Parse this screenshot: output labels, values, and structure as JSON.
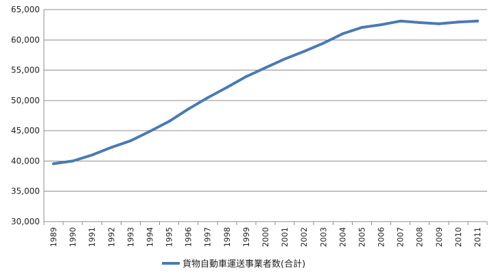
{
  "chart_data": {
    "type": "line",
    "title": "",
    "xlabel": "",
    "ylabel": "",
    "categories": [
      "1989",
      "1990",
      "1991",
      "1992",
      "1993",
      "1994",
      "1995",
      "1996",
      "1997",
      "1998",
      "1999",
      "2000",
      "2001",
      "2002",
      "2003",
      "2004",
      "2005",
      "2006",
      "2007",
      "2008",
      "2009",
      "2010",
      "2011"
    ],
    "series": [
      {
        "name": "貨物自動車運送事業者数(合計)",
        "color": "#4a7ab3",
        "values": [
          39550,
          40000,
          41000,
          42250,
          43350,
          44900,
          46550,
          48600,
          50450,
          52150,
          53950,
          55400,
          56850,
          58100,
          59450,
          61000,
          62050,
          62500,
          63100,
          62850,
          62650,
          62950,
          63100
        ]
      }
    ],
    "ylim": [
      30000,
      65000
    ],
    "y_ticks": [
      "30,000",
      "35,000",
      "40,000",
      "45,000",
      "50,000",
      "55,000",
      "60,000",
      "65,000"
    ],
    "y_tick_values": [
      30000,
      35000,
      40000,
      45000,
      50000,
      55000,
      60000,
      65000
    ],
    "grid": true,
    "legend_position": "bottom"
  }
}
